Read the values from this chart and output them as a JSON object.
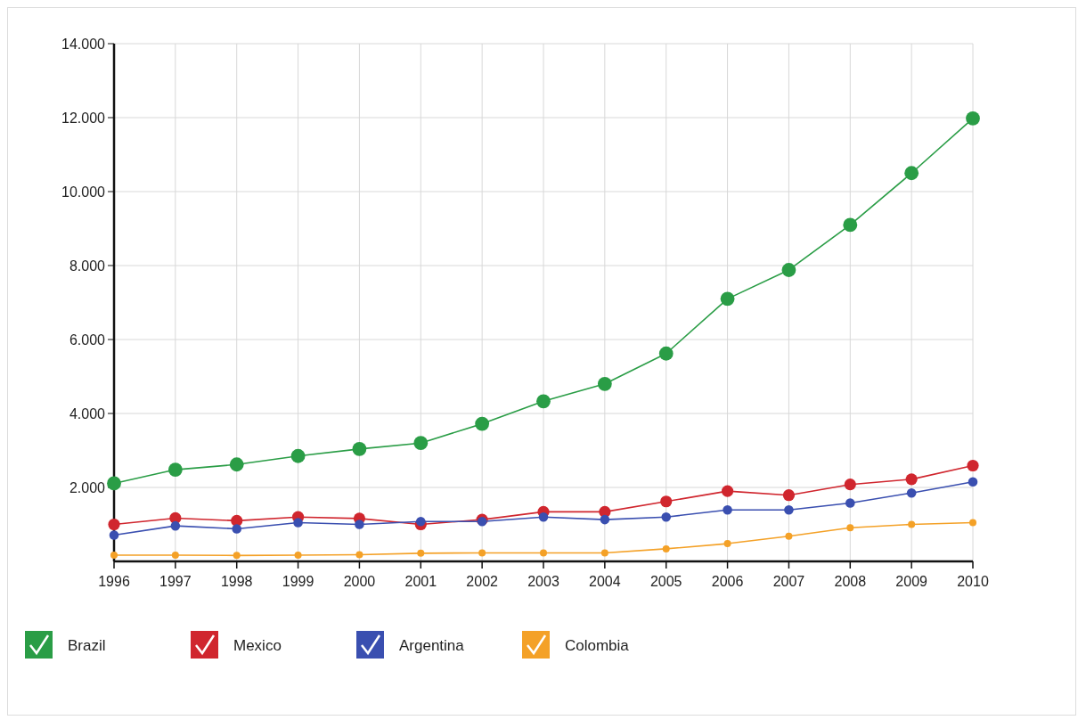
{
  "chart_data": {
    "type": "line",
    "x": [
      1996,
      1997,
      1998,
      1999,
      2000,
      2001,
      2002,
      2003,
      2004,
      2005,
      2006,
      2007,
      2008,
      2009,
      2010
    ],
    "xlim": [
      1996,
      2010
    ],
    "xticks": [
      1996,
      1997,
      1998,
      1999,
      2000,
      2001,
      2002,
      2003,
      2004,
      2005,
      2006,
      2007,
      2008,
      2009,
      2010
    ],
    "ylim": [
      0,
      14000
    ],
    "yticks": [
      {
        "value": 2000,
        "label": "2.000"
      },
      {
        "value": 4000,
        "label": "4.000"
      },
      {
        "value": 6000,
        "label": "6.000"
      },
      {
        "value": 8000,
        "label": "8.000"
      },
      {
        "value": 10000,
        "label": "10.000"
      },
      {
        "value": 12000,
        "label": "12.000"
      },
      {
        "value": 14000,
        "label": "14.000"
      }
    ],
    "grid": true,
    "legend": "bottom",
    "marker": "circle",
    "line_style": "solid",
    "series": [
      {
        "name": "Brazil",
        "color": "#2a9d46",
        "values": [
          2110,
          2480,
          2620,
          2850,
          3040,
          3200,
          3720,
          4330,
          4800,
          5620,
          7100,
          7880,
          9100,
          10500,
          11980
        ]
      },
      {
        "name": "Mexico",
        "color": "#d0262e",
        "values": [
          1000,
          1170,
          1100,
          1200,
          1160,
          1000,
          1130,
          1340,
          1340,
          1620,
          1900,
          1790,
          2080,
          2220,
          2590
        ]
      },
      {
        "name": "Argentina",
        "color": "#3a4fb0",
        "values": [
          710,
          960,
          880,
          1050,
          1000,
          1080,
          1080,
          1200,
          1130,
          1200,
          1390,
          1390,
          1580,
          1850,
          2150
        ]
      },
      {
        "name": "Colombia",
        "color": "#f4a127",
        "values": [
          170,
          170,
          160,
          170,
          180,
          220,
          230,
          230,
          230,
          340,
          480,
          680,
          910,
          1000,
          1050
        ]
      }
    ]
  }
}
